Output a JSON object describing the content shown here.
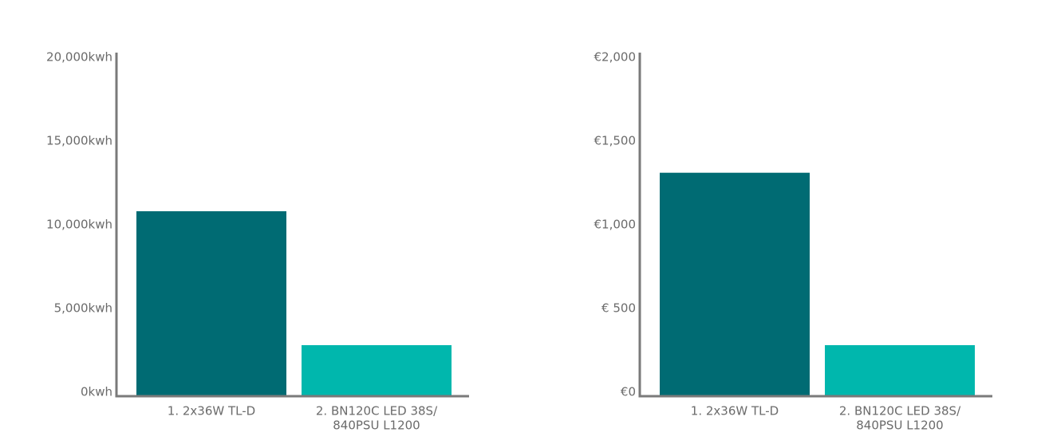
{
  "chart_data": [
    {
      "type": "bar",
      "categories": [
        [
          "1. 2x36W TL-D"
        ],
        [
          "2. BN120C LED 38S/",
          "840PSU L1200"
        ]
      ],
      "values": [
        11000,
        3000
      ],
      "colors": [
        "#006b73",
        "#00b7ad"
      ],
      "ylim": [
        0,
        20000
      ],
      "yticks": [
        {
          "value": 0,
          "label": "0kwh"
        },
        {
          "value": 5000,
          "label": "5,000kwh"
        },
        {
          "value": 10000,
          "label": "10,000kwh"
        },
        {
          "value": 15000,
          "label": "15,000kwh"
        },
        {
          "value": 20000,
          "label": "20,000kwh"
        }
      ]
    },
    {
      "type": "bar",
      "categories": [
        [
          "1. 2x36W TL-D"
        ],
        [
          "2. BN120C LED 38S/",
          "840PSU L1200"
        ]
      ],
      "values": [
        1330,
        300
      ],
      "colors": [
        "#006b73",
        "#00b7ad"
      ],
      "ylim": [
        0,
        2000
      ],
      "yticks": [
        {
          "value": 0,
          "label": "€0"
        },
        {
          "value": 500,
          "label": "€ 500"
        },
        {
          "value": 1000,
          "label": "€1,000"
        },
        {
          "value": 1500,
          "label": "€1,500"
        },
        {
          "value": 2000,
          "label": "€2,000"
        }
      ]
    }
  ]
}
